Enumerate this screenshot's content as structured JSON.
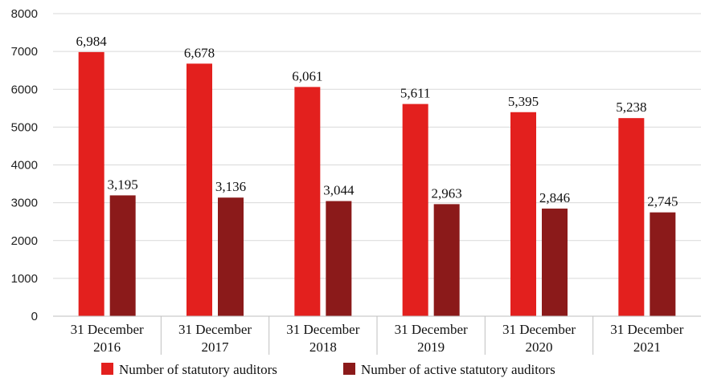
{
  "chart_data": {
    "type": "bar",
    "title": "",
    "xlabel": "",
    "ylabel": "",
    "ylim": [
      0,
      8000
    ],
    "yticks": [
      0,
      1000,
      2000,
      3000,
      4000,
      5000,
      6000,
      7000,
      8000
    ],
    "grid": true,
    "legend_position": "bottom",
    "categories": [
      [
        "31 December",
        "2016"
      ],
      [
        "31 December",
        "2017"
      ],
      [
        "31 December",
        "2018"
      ],
      [
        "31 December",
        "2019"
      ],
      [
        "31 December",
        "2020"
      ],
      [
        "31 December",
        "2021"
      ]
    ],
    "series": [
      {
        "name": "Number of statutory auditors",
        "color": "#e3201e",
        "values": [
          6984,
          6678,
          6061,
          5611,
          5395,
          5238
        ],
        "labels": [
          "6,984",
          "6,678",
          "6,061",
          "5,611",
          "5,395",
          "5,238"
        ]
      },
      {
        "name": "Number of active statutory auditors",
        "color": "#8b1a1a",
        "values": [
          3195,
          3136,
          3044,
          2963,
          2846,
          2745
        ],
        "labels": [
          "3,195",
          "3,136",
          "3,044",
          "2,963",
          "2,846",
          "2,745"
        ]
      }
    ]
  }
}
